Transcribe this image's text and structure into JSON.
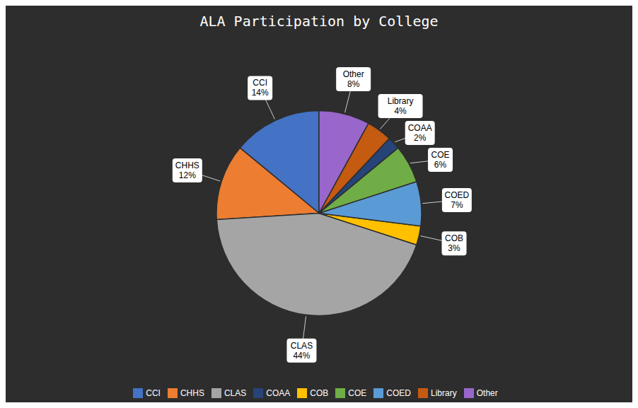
{
  "chart_data": {
    "type": "pie",
    "title": "ALA Participation by College",
    "categories": [
      "CCI",
      "CHHS",
      "CLAS",
      "COB",
      "COED",
      "COE",
      "COAA",
      "Library",
      "Other"
    ],
    "values": [
      14,
      12,
      44,
      3,
      7,
      6,
      2,
      4,
      8
    ],
    "value_labels": [
      "14%",
      "12%",
      "44%",
      "3%",
      "7%",
      "6%",
      "2%",
      "4%",
      "8%"
    ],
    "colors": [
      "#4472C4",
      "#ED7D31",
      "#A5A5A5",
      "#FFC000",
      "#5B9BD5",
      "#70AD47",
      "#264478",
      "#C55A11",
      "#9966CC"
    ],
    "data_labels": true,
    "legend": "bottom"
  }
}
